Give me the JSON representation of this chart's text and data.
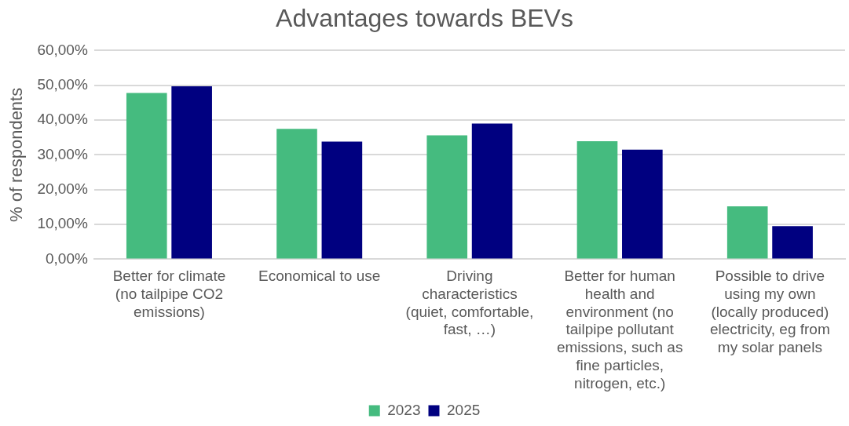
{
  "chart_data": {
    "type": "bar",
    "title": "Advantages towards BEVs",
    "ylabel": "% of respondents",
    "categories": [
      "Better for climate (no tailpipe CO2 emissions)",
      "Economical to use",
      "Driving characteristics (quiet, comfortable, fast, …)",
      "Better for human health and environment (no tailpipe pollutant emissions, such as fine particles, nitrogen, etc.)",
      "Possible to drive using my own (locally produced) electricity, eg from my solar panels"
    ],
    "series": [
      {
        "name": "2023",
        "color": "#45bb7f",
        "values": [
          47.8,
          37.5,
          35.6,
          33.9,
          15.2
        ]
      },
      {
        "name": "2025",
        "color": "#000080",
        "values": [
          49.7,
          33.8,
          39.0,
          31.5,
          9.5
        ]
      }
    ],
    "ylim": [
      0,
      60
    ],
    "yticks": [
      {
        "value": 0,
        "label": "0,00%"
      },
      {
        "value": 10,
        "label": "10,00%"
      },
      {
        "value": 20,
        "label": "20,00%"
      },
      {
        "value": 30,
        "label": "30,00%"
      },
      {
        "value": 40,
        "label": "40,00%"
      },
      {
        "value": 50,
        "label": "50,00%"
      },
      {
        "value": 60,
        "label": "60,00%"
      }
    ],
    "grid": "y",
    "legend": "bottom"
  }
}
